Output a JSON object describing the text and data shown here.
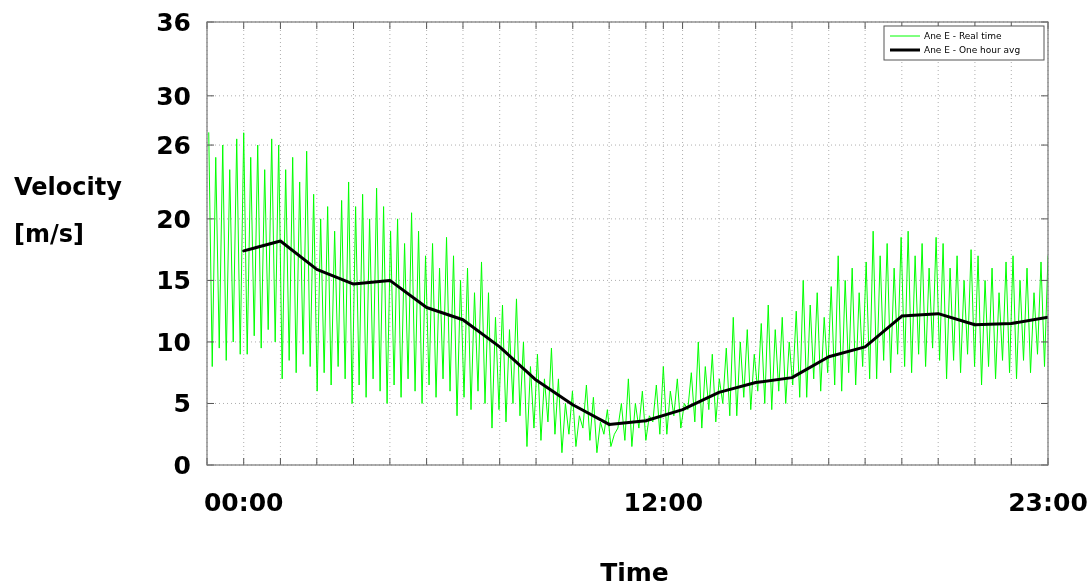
{
  "chart_data": {
    "type": "line",
    "xlabel": "Time",
    "ylabel": "Velocity [m/s]",
    "xlim": [
      -1.05,
      23
    ],
    "ylim": [
      0,
      36
    ],
    "xticks": [
      {
        "value": -1.05,
        "label": null
      },
      {
        "value": 0,
        "label": "00:00"
      },
      {
        "value": 1.05,
        "label": null
      },
      {
        "value": 2.09,
        "label": null
      },
      {
        "value": 3.14,
        "label": null
      },
      {
        "value": 4.18,
        "label": null
      },
      {
        "value": 5.23,
        "label": null
      },
      {
        "value": 6.27,
        "label": null
      },
      {
        "value": 7.32,
        "label": null
      },
      {
        "value": 8.36,
        "label": null
      },
      {
        "value": 9.41,
        "label": null
      },
      {
        "value": 10.45,
        "label": null
      },
      {
        "value": 11.5,
        "label": null
      },
      {
        "value": 12,
        "label": "12:00"
      },
      {
        "value": 12.55,
        "label": null
      },
      {
        "value": 13.59,
        "label": null
      },
      {
        "value": 14.64,
        "label": null
      },
      {
        "value": 15.68,
        "label": null
      },
      {
        "value": 16.73,
        "label": null
      },
      {
        "value": 17.77,
        "label": null
      },
      {
        "value": 18.82,
        "label": null
      },
      {
        "value": 19.86,
        "label": null
      },
      {
        "value": 20.91,
        "label": null
      },
      {
        "value": 21.95,
        "label": null
      },
      {
        "value": 23,
        "label": "23:00"
      }
    ],
    "yticks": [
      0,
      5,
      10,
      15,
      20,
      26,
      30,
      36
    ],
    "grid": true,
    "legend": "top right",
    "line_style": "solid",
    "marker": "none",
    "series": [
      {
        "name": "Ane E - Real time",
        "color": "#00ff00",
        "x": [
          -1,
          -0.9,
          -0.8,
          -0.7,
          -0.6,
          -0.5,
          -0.4,
          -0.3,
          -0.2,
          -0.1,
          0,
          0.1,
          0.2,
          0.3,
          0.4,
          0.5,
          0.6,
          0.7,
          0.8,
          0.9,
          1,
          1.1,
          1.2,
          1.3,
          1.4,
          1.5,
          1.6,
          1.7,
          1.8,
          1.9,
          2,
          2.1,
          2.2,
          2.3,
          2.4,
          2.5,
          2.6,
          2.7,
          2.8,
          2.9,
          3,
          3.1,
          3.2,
          3.3,
          3.4,
          3.5,
          3.6,
          3.7,
          3.8,
          3.9,
          4,
          4.1,
          4.2,
          4.3,
          4.4,
          4.5,
          4.6,
          4.7,
          4.8,
          4.9,
          5,
          5.1,
          5.2,
          5.3,
          5.4,
          5.5,
          5.6,
          5.7,
          5.8,
          5.9,
          6,
          6.1,
          6.2,
          6.3,
          6.4,
          6.5,
          6.6,
          6.7,
          6.8,
          6.9,
          7,
          7.1,
          7.2,
          7.3,
          7.4,
          7.5,
          7.6,
          7.7,
          7.8,
          7.9,
          8,
          8.1,
          8.2,
          8.3,
          8.4,
          8.5,
          8.6,
          8.7,
          8.8,
          8.9,
          9,
          9.1,
          9.2,
          9.3,
          9.4,
          9.5,
          9.6,
          9.7,
          9.8,
          9.9,
          10,
          10.1,
          10.2,
          10.3,
          10.4,
          10.5,
          10.6,
          10.7,
          10.8,
          10.9,
          11,
          11.1,
          11.2,
          11.3,
          11.4,
          11.5,
          11.6,
          11.7,
          11.8,
          11.9,
          12,
          12.1,
          12.2,
          12.3,
          12.4,
          12.5,
          12.6,
          12.7,
          12.8,
          12.9,
          13,
          13.1,
          13.2,
          13.3,
          13.4,
          13.5,
          13.6,
          13.7,
          13.8,
          13.9,
          14,
          14.1,
          14.2,
          14.3,
          14.4,
          14.5,
          14.6,
          14.7,
          14.8,
          14.9,
          15,
          15.1,
          15.2,
          15.3,
          15.4,
          15.5,
          15.6,
          15.7,
          15.8,
          15.9,
          16,
          16.1,
          16.2,
          16.3,
          16.4,
          16.5,
          16.6,
          16.7,
          16.8,
          16.9,
          17,
          17.1,
          17.2,
          17.3,
          17.4,
          17.5,
          17.6,
          17.7,
          17.8,
          17.9,
          18,
          18.1,
          18.2,
          18.3,
          18.4,
          18.5,
          18.6,
          18.7,
          18.8,
          18.9,
          19,
          19.1,
          19.2,
          19.3,
          19.4,
          19.5,
          19.6,
          19.7,
          19.8,
          19.9,
          20,
          20.1,
          20.2,
          20.3,
          20.4,
          20.5,
          20.6,
          20.7,
          20.8,
          20.9,
          21,
          21.1,
          21.2,
          21.3,
          21.4,
          21.5,
          21.6,
          21.7,
          21.8,
          21.9,
          22,
          22.1,
          22.2,
          22.3,
          22.4,
          22.5,
          22.6,
          22.7,
          22.8,
          22.9,
          23
        ],
        "values": [
          27,
          8,
          25,
          9.5,
          26,
          8.5,
          24,
          10,
          26.5,
          9,
          27,
          9,
          25,
          10.5,
          26,
          9.5,
          24,
          11,
          26.5,
          10,
          26,
          7,
          24,
          8.5,
          25,
          7.5,
          23,
          9,
          25.5,
          8,
          22,
          6,
          20,
          7.5,
          21,
          6.5,
          19,
          8,
          21.5,
          7,
          23,
          5,
          21,
          6.5,
          22,
          5.5,
          20,
          7,
          22.5,
          6,
          21,
          5,
          19,
          6.5,
          20,
          5.5,
          18,
          7,
          20.5,
          6,
          19,
          5,
          17,
          6.5,
          18,
          5.5,
          16,
          7,
          18.5,
          6,
          17,
          4,
          15,
          5.5,
          16,
          4.5,
          14,
          6,
          16.5,
          5,
          14,
          3,
          12,
          4.5,
          13,
          3.5,
          11,
          5,
          13.5,
          4,
          10,
          1.5,
          8,
          3,
          9,
          2,
          7,
          3.5,
          9.5,
          2.5,
          7,
          1,
          5,
          2.5,
          6,
          1.5,
          4,
          3,
          6.5,
          2,
          5.5,
          1,
          3.5,
          2.5,
          4.5,
          1.5,
          2.5,
          3,
          5,
          2,
          7,
          1.5,
          5,
          3,
          6,
          2,
          4,
          3.5,
          6.5,
          2.5,
          8,
          2.5,
          6,
          4,
          7,
          3,
          5,
          4.5,
          7.5,
          3.5,
          10,
          3,
          8,
          4.5,
          9,
          3.5,
          7,
          5,
          9.5,
          4,
          12,
          4,
          10,
          5.5,
          11,
          4.5,
          9,
          6,
          11.5,
          5,
          13,
          4.5,
          11,
          6,
          12,
          5,
          10,
          6.5,
          12.5,
          5.5,
          15,
          5.5,
          13,
          7,
          14,
          6,
          12,
          7.5,
          14.5,
          6.5,
          17,
          6,
          15,
          7.5,
          16,
          6.5,
          14,
          8,
          16.5,
          7,
          19,
          7,
          17,
          8.5,
          18,
          7.5,
          16,
          9,
          18.5,
          8,
          19,
          7.5,
          17,
          9,
          18,
          8,
          16,
          9.5,
          18.5,
          8.5,
          18,
          7,
          16,
          8.5,
          17,
          7.5,
          15,
          9,
          17.5,
          8,
          17,
          6.5,
          15,
          8,
          16,
          7,
          14,
          8.5,
          16.5,
          7.5,
          17,
          7,
          15,
          8.5,
          16,
          7.5,
          14,
          9,
          16.5,
          8,
          17
        ]
      },
      {
        "name": "Ane E - One hour avg",
        "color": "#000000",
        "x": [
          0,
          1.05,
          2.09,
          3.14,
          4.18,
          5.23,
          6.27,
          7.32,
          8.36,
          9.41,
          10.45,
          11.5,
          12.55,
          13.59,
          14.64,
          15.68,
          16.73,
          17.77,
          18.82,
          19.86,
          20.91,
          21.95,
          23
        ],
        "values": [
          17.4,
          18.2,
          15.9,
          14.7,
          15.0,
          12.8,
          11.8,
          9.6,
          6.9,
          4.9,
          3.3,
          3.6,
          4.5,
          5.9,
          6.7,
          7.1,
          8.8,
          9.6,
          12.1,
          12.3,
          11.4,
          11.5,
          12.0
        ]
      }
    ]
  }
}
